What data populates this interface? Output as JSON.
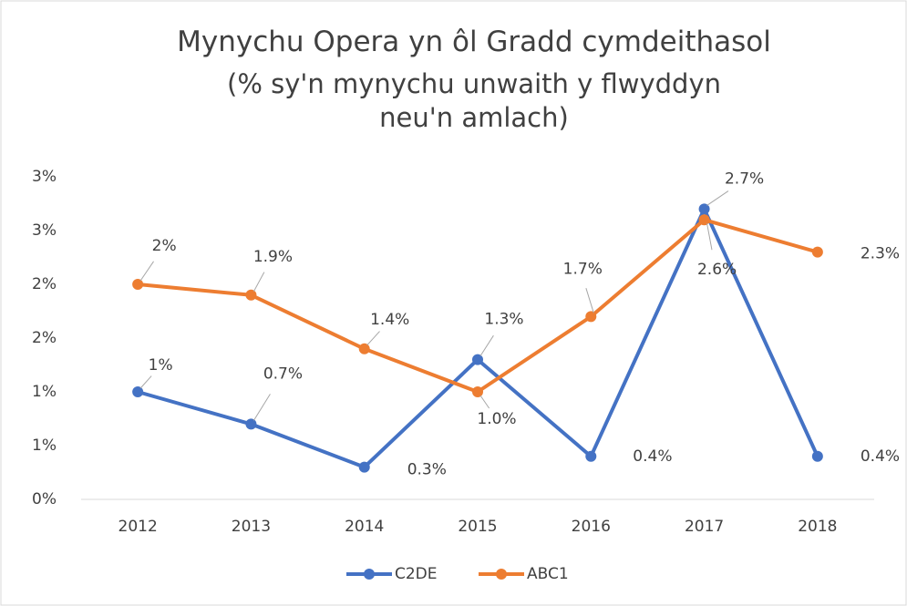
{
  "chart_data": {
    "type": "line",
    "title": "Mynychu Opera yn ôl Gradd cymdeithasol",
    "subtitle": "(% sy'n mynychu unwaith y flwyddyn neu'n amlach)",
    "categories": [
      "2012",
      "2013",
      "2014",
      "2015",
      "2016",
      "2017",
      "2018"
    ],
    "series": [
      {
        "name": "C2DE",
        "color": "#4472c4",
        "values": [
          1.0,
          0.7,
          0.3,
          1.3,
          0.4,
          2.7,
          0.4
        ],
        "value_labels": [
          "1%",
          "0.7%",
          "0.3%",
          "1.3%",
          "0.4%",
          "2.7%",
          "0.4%"
        ]
      },
      {
        "name": "ABC1",
        "color": "#ed7d31",
        "values": [
          2.0,
          1.9,
          1.4,
          1.0,
          1.7,
          2.6,
          2.3
        ],
        "value_labels": [
          "2%",
          "1.9%",
          "1.4%",
          "1.0%",
          "1.7%",
          "2.6%",
          "2.3%"
        ]
      }
    ],
    "ylim": [
      0,
      3
    ],
    "yticks": [
      {
        "value": 0,
        "label": "0%"
      },
      {
        "value": 0.5,
        "label": "1%"
      },
      {
        "value": 1,
        "label": "1%"
      },
      {
        "value": 1.5,
        "label": "2%"
      },
      {
        "value": 2,
        "label": "2%"
      },
      {
        "value": 2.5,
        "label": "3%"
      },
      {
        "value": 3,
        "label": "3%"
      }
    ],
    "grid": false,
    "legend": "bottom"
  }
}
